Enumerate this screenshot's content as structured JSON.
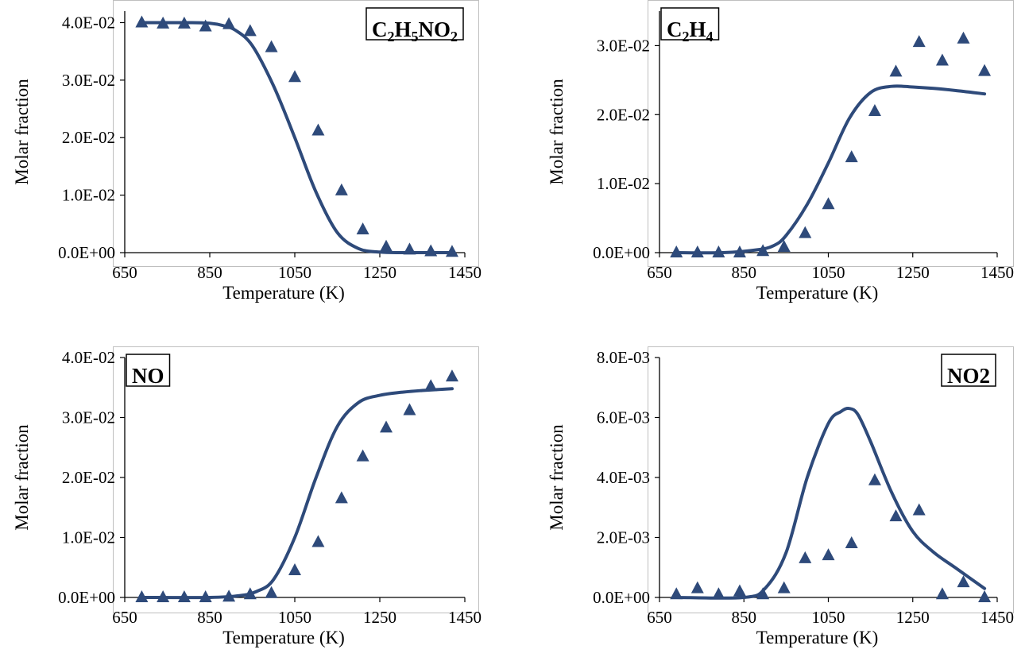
{
  "colors": {
    "series": "#2E4A7A",
    "axis": "#000000",
    "frame": "#bfbfbf",
    "background": "#ffffff"
  },
  "chart_data": [
    {
      "type": "line",
      "title": "",
      "xlabel": "Temperature (K)",
      "ylabel": "Molar fraction",
      "label_box": {
        "main": "C",
        "parts": [
          [
            "C",
            ""
          ],
          [
            "2",
            "sub"
          ],
          [
            "H",
            ""
          ],
          [
            "5",
            "sub"
          ],
          [
            "NO",
            ""
          ],
          [
            "2",
            "sub"
          ]
        ]
      },
      "label_position": "top-right",
      "xlim": [
        650,
        1450
      ],
      "ylim": [
        0,
        0.042
      ],
      "xticks": [
        650,
        850,
        1050,
        1250,
        1450
      ],
      "xtick_labels": [
        "650",
        "850",
        "1050",
        "1250",
        "1450"
      ],
      "yticks": [
        0,
        0.01,
        0.02,
        0.03,
        0.04
      ],
      "ytick_labels": [
        "0.0E+00",
        "1.0E-02",
        "2.0E-02",
        "3.0E-02",
        "4.0E-02"
      ],
      "grid": false,
      "series": [
        {
          "kind": "line",
          "x": [
            690,
            750,
            800,
            850,
            880,
            910,
            950,
            1000,
            1050,
            1100,
            1150,
            1200,
            1250,
            1300,
            1350,
            1420
          ],
          "y": [
            0.04,
            0.04,
            0.04,
            0.0399,
            0.0395,
            0.0387,
            0.036,
            0.029,
            0.02,
            0.0105,
            0.0035,
            0.0007,
            0.0001,
            0.0,
            0.0,
            0.0
          ]
        },
        {
          "kind": "marker",
          "x": [
            690,
            740,
            790,
            840,
            895,
            945,
            995,
            1050,
            1105,
            1160,
            1210,
            1265,
            1320,
            1370,
            1420
          ],
          "y": [
            0.04,
            0.0398,
            0.0398,
            0.0393,
            0.0397,
            0.0385,
            0.0357,
            0.0305,
            0.0212,
            0.0108,
            0.004,
            0.001,
            0.0005,
            0.0002,
            0.0001
          ]
        }
      ]
    },
    {
      "type": "line",
      "title": "",
      "xlabel": "Temperature (K)",
      "ylabel": "Molar fraction",
      "label_box": {
        "parts": [
          [
            "C",
            ""
          ],
          [
            "2",
            "sub"
          ],
          [
            "H",
            ""
          ],
          [
            "4",
            "sub"
          ]
        ]
      },
      "label_position": "top-left",
      "xlim": [
        650,
        1450
      ],
      "ylim": [
        0,
        0.035
      ],
      "xticks": [
        650,
        850,
        1050,
        1250,
        1450
      ],
      "xtick_labels": [
        "650",
        "850",
        "1050",
        "1250",
        "1450"
      ],
      "yticks": [
        0,
        0.01,
        0.02,
        0.03
      ],
      "ytick_labels": [
        "0.0E+00",
        "1.0E-02",
        "2.0E-02",
        "3.0E-02"
      ],
      "grid": false,
      "series": [
        {
          "kind": "line",
          "x": [
            690,
            800,
            880,
            920,
            950,
            1000,
            1050,
            1100,
            1150,
            1200,
            1250,
            1300,
            1350,
            1420
          ],
          "y": [
            0.0,
            0.0,
            0.0004,
            0.001,
            0.0025,
            0.007,
            0.013,
            0.0195,
            0.0232,
            0.0241,
            0.024,
            0.0238,
            0.0235,
            0.023
          ]
        },
        {
          "kind": "marker",
          "x": [
            690,
            740,
            790,
            840,
            895,
            945,
            995,
            1050,
            1105,
            1160,
            1210,
            1265,
            1320,
            1370,
            1420
          ],
          "y": [
            0.0,
            0.0,
            0.0,
            0.0,
            0.0002,
            0.0008,
            0.0028,
            0.007,
            0.0138,
            0.0205,
            0.0262,
            0.0305,
            0.0278,
            0.031,
            0.0263
          ]
        }
      ]
    },
    {
      "type": "line",
      "title": "",
      "xlabel": "Temperature (K)",
      "ylabel": "Molar fraction",
      "label_box": {
        "parts": [
          [
            "NO",
            ""
          ]
        ]
      },
      "label_position": "top-left",
      "xlim": [
        650,
        1450
      ],
      "ylim": [
        0,
        0.04
      ],
      "xticks": [
        650,
        850,
        1050,
        1250,
        1450
      ],
      "xtick_labels": [
        "650",
        "850",
        "1050",
        "1250",
        "1450"
      ],
      "yticks": [
        0,
        0.01,
        0.02,
        0.03,
        0.04
      ],
      "ytick_labels": [
        "0.0E+00",
        "1.0E-02",
        "2.0E-02",
        "3.0E-02",
        "4.0E-02"
      ],
      "grid": false,
      "series": [
        {
          "kind": "line",
          "x": [
            690,
            850,
            920,
            960,
            1000,
            1050,
            1100,
            1150,
            1200,
            1250,
            1300,
            1350,
            1420
          ],
          "y": [
            0.0,
            0.0,
            0.0003,
            0.001,
            0.003,
            0.01,
            0.02,
            0.0285,
            0.0325,
            0.0337,
            0.0342,
            0.0345,
            0.0348
          ]
        },
        {
          "kind": "marker",
          "x": [
            690,
            740,
            790,
            840,
            895,
            945,
            995,
            1050,
            1105,
            1160,
            1210,
            1265,
            1320,
            1370,
            1420
          ],
          "y": [
            0.0,
            0.0,
            0.0,
            0.0,
            0.0001,
            0.0005,
            0.0007,
            0.0045,
            0.0092,
            0.0165,
            0.0235,
            0.0283,
            0.0312,
            0.0352,
            0.0368
          ]
        }
      ]
    },
    {
      "type": "line",
      "title": "",
      "xlabel": "Temperature (K)",
      "ylabel": "Molar fraction",
      "label_box": {
        "parts": [
          [
            "NO2",
            ""
          ]
        ]
      },
      "label_position": "top-right",
      "xlim": [
        650,
        1450
      ],
      "ylim": [
        0,
        0.008
      ],
      "xticks": [
        650,
        850,
        1050,
        1250,
        1450
      ],
      "xtick_labels": [
        "650",
        "850",
        "1050",
        "1250",
        "1450"
      ],
      "yticks": [
        0,
        0.002,
        0.004,
        0.006,
        0.008
      ],
      "ytick_labels": [
        "0.0E+00",
        "2.0E-03",
        "4.0E-03",
        "6.0E-03",
        "8.0E-03"
      ],
      "grid": false,
      "series": [
        {
          "kind": "line",
          "x": [
            690,
            850,
            900,
            950,
            1000,
            1050,
            1080,
            1100,
            1120,
            1150,
            1200,
            1250,
            1300,
            1350,
            1420
          ],
          "y": [
            0.0,
            0.0,
            0.0003,
            0.0015,
            0.004,
            0.0058,
            0.0062,
            0.0063,
            0.0061,
            0.0052,
            0.0035,
            0.0022,
            0.0015,
            0.001,
            0.0003
          ]
        },
        {
          "kind": "marker",
          "x": [
            690,
            740,
            790,
            840,
            895,
            945,
            995,
            1050,
            1105,
            1160,
            1210,
            1265,
            1320,
            1370,
            1420
          ],
          "y": [
            0.0001,
            0.0003,
            0.0001,
            0.0002,
            0.0001,
            0.0003,
            0.0013,
            0.0014,
            0.0018,
            0.0039,
            0.0027,
            0.0029,
            0.0001,
            0.0005,
            0.0
          ]
        }
      ]
    }
  ]
}
